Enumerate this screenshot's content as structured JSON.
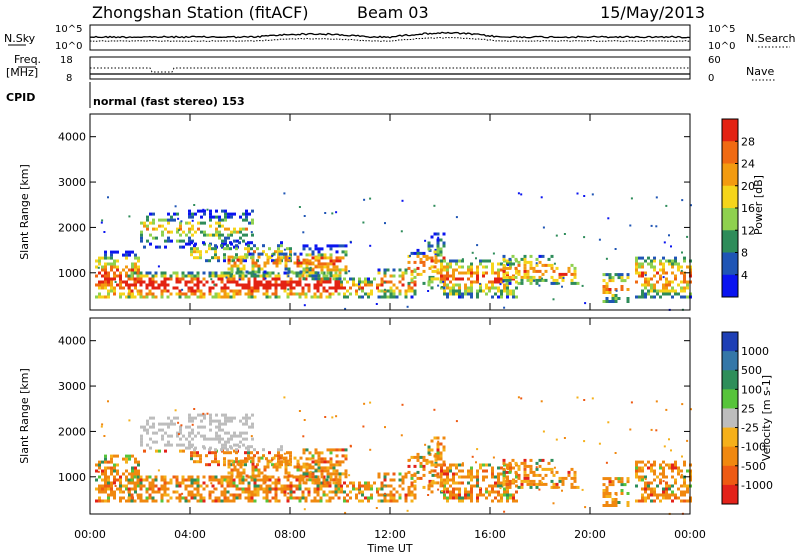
{
  "header": {
    "station": "Zhongshan Station (fitACF)",
    "beam": "Beam 03",
    "date": "15/May/2013"
  },
  "nsky_panel": {
    "left_label": "N.Sky",
    "right_label": "N.Search",
    "left_ticks": [
      "10^5",
      "10^0"
    ],
    "right_ticks": [
      "10^5",
      "10^0"
    ]
  },
  "freq_panel": {
    "left_label_1": "Freq.",
    "left_label_2": "[MHz]",
    "right_label": "Nave",
    "left_ticks": [
      "18",
      "8"
    ],
    "right_ticks": [
      "60",
      "0"
    ]
  },
  "cpid_panel": {
    "label": "CPID",
    "mode_text": "normal (fast stereo) 153"
  },
  "chart_data": [
    {
      "type": "heatmap",
      "title": "",
      "ylabel": "Slant Range [km]",
      "xlabel": "",
      "x_range_hours": [
        0,
        24
      ],
      "ylim": [
        180,
        4500
      ],
      "y_ticks": [
        "1000",
        "2000",
        "3000",
        "4000"
      ],
      "colorbar": {
        "label": "Power [dB]",
        "ticks": [
          "4",
          "8",
          "12",
          "16",
          "20",
          "24",
          "28"
        ],
        "colors": [
          "#0a14f0",
          "#1f55b5",
          "#2e8c5a",
          "#8fd14f",
          "#f5d51b",
          "#f39b10",
          "#f06a12",
          "#e32212"
        ]
      }
    },
    {
      "type": "heatmap",
      "title": "",
      "ylabel": "Slant Range [km]",
      "xlabel": "Time UT",
      "x_range_hours": [
        0,
        24
      ],
      "ylim": [
        180,
        4500
      ],
      "y_ticks": [
        "1000",
        "2000",
        "3000",
        "4000"
      ],
      "x_ticks": [
        "00:00",
        "04:00",
        "08:00",
        "12:00",
        "16:00",
        "20:00",
        "00:00"
      ],
      "colorbar": {
        "label": "Velocity [m s-1]",
        "ticks": [
          "1000",
          "500",
          "100",
          "25",
          "-25",
          "-100",
          "-500",
          "-1000"
        ],
        "colors": [
          "#1e3fb5",
          "#3477a8",
          "#2e8e5a",
          "#57c43a",
          "#bdbdbd",
          "#f5b01a",
          "#f0880f",
          "#ee5a13",
          "#e3221a"
        ]
      }
    }
  ]
}
